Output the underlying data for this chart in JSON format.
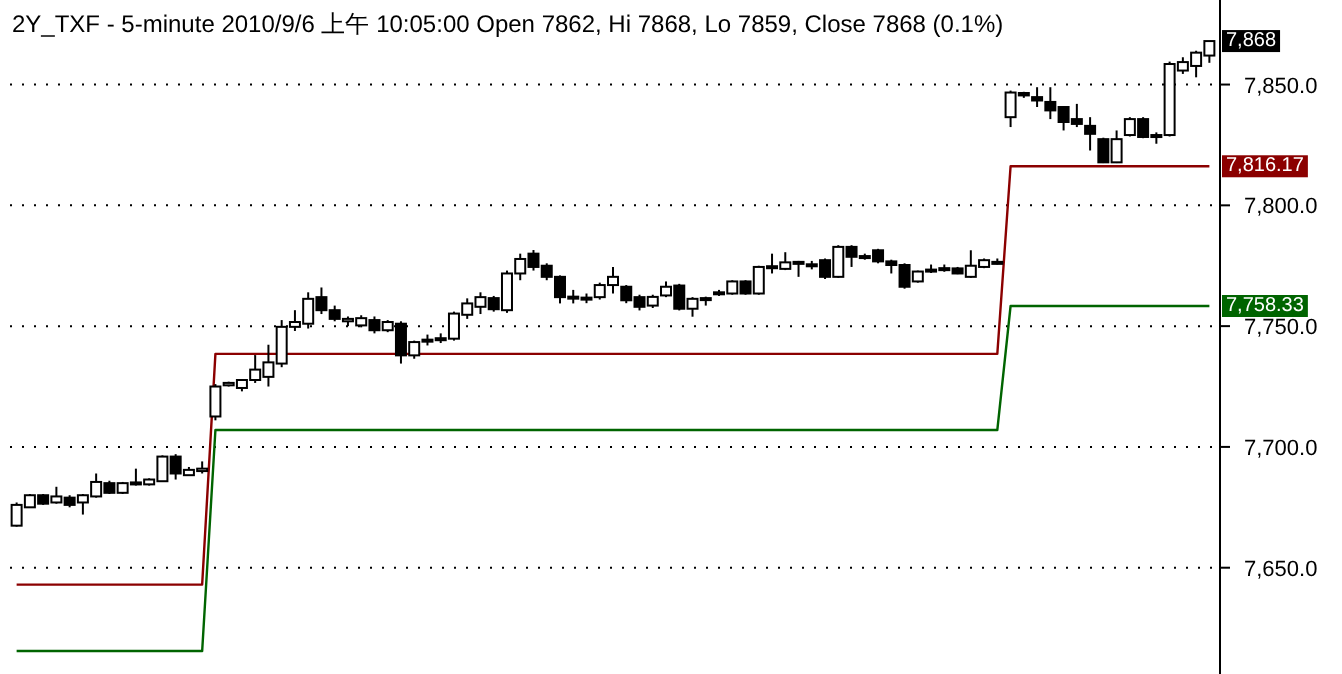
{
  "chart_data": {
    "type": "candlestick",
    "title": "2Y_TXF - 5-minute 2010/9/6 上午 10:05:00 Open 7862, Hi 7868, Lo 7859, Close 7868 (0.1%)",
    "categories": [
      null,
      null,
      null,
      null,
      null,
      null,
      null,
      null,
      null,
      null,
      null,
      null,
      null,
      null,
      null,
      null,
      null,
      null,
      null,
      null,
      null,
      null,
      null,
      null,
      null,
      null,
      null,
      null,
      null,
      null,
      null,
      null,
      null,
      null,
      null,
      null,
      null,
      null,
      null,
      null,
      null,
      null,
      null,
      null,
      null,
      null,
      null,
      null,
      null,
      null,
      null,
      null,
      null,
      null,
      null,
      null,
      null,
      null,
      null,
      null,
      null,
      null,
      null,
      null,
      null,
      null,
      null,
      null,
      null,
      null,
      null,
      null,
      null,
      null,
      null,
      null,
      null,
      null,
      null,
      null,
      null,
      null,
      null,
      null,
      null,
      null,
      null,
      null,
      null,
      null,
      null
    ],
    "ohlc": [
      [
        7667.4,
        7677,
        7667,
        7676
      ],
      [
        7675,
        7680.5,
        7675,
        7680
      ],
      [
        7680,
        7680.5,
        7676,
        7676.5
      ],
      [
        7677,
        7683.5,
        7676.5,
        7679.5
      ],
      [
        7679,
        7680,
        7675,
        7676
      ],
      [
        7677,
        7680.5,
        7672,
        7680
      ],
      [
        7679.5,
        7689,
        7679,
        7685.5
      ],
      [
        7685,
        7686,
        7680.5,
        7681
      ],
      [
        7681,
        7685.5,
        7680.5,
        7685
      ],
      [
        7684.5,
        7691,
        7684,
        7685.3
      ],
      [
        7684.5,
        7687,
        7684,
        7686.5
      ],
      [
        7685.8,
        7696.5,
        7685.5,
        7696
      ],
      [
        7696,
        7697,
        7686.5,
        7689
      ],
      [
        7688.3,
        7691.7,
        7688,
        7690.5
      ],
      [
        7690,
        7694,
        7689,
        7691
      ],
      [
        7712.6,
        7726,
        7711,
        7725
      ],
      [
        7725.5,
        7727,
        7725,
        7726.5
      ],
      [
        7724.4,
        7728,
        7723,
        7727.7
      ],
      [
        7727.7,
        7738,
        7726.5,
        7732
      ],
      [
        7729,
        7742.3,
        7725,
        7735
      ],
      [
        7734.5,
        7752.5,
        7733,
        7749.7
      ],
      [
        7749.7,
        7756.6,
        7748,
        7751.7
      ],
      [
        7751,
        7764,
        7749,
        7761.3
      ],
      [
        7762,
        7766,
        7755,
        7756.6
      ],
      [
        7756.6,
        7758.5,
        7752,
        7753
      ],
      [
        7752,
        7754,
        7750,
        7753
      ],
      [
        7750.3,
        7754.5,
        7749.5,
        7753.3
      ],
      [
        7752.5,
        7754,
        7747,
        7748.3
      ],
      [
        7748.3,
        7752.5,
        7747.5,
        7751.7
      ],
      [
        7751,
        7752,
        7734.5,
        7737.9
      ],
      [
        7737.9,
        7744,
        7736.5,
        7743.4
      ],
      [
        7743.8,
        7746.5,
        7742,
        7744.4
      ],
      [
        7744.5,
        7747,
        7743,
        7745
      ],
      [
        7744.8,
        7756,
        7744,
        7755.2
      ],
      [
        7754.7,
        7761.5,
        7753,
        7759.4
      ],
      [
        7758,
        7764,
        7755,
        7762
      ],
      [
        7761.6,
        7762.5,
        7756,
        7757
      ],
      [
        7756.6,
        7773,
        7755.5,
        7771.8
      ],
      [
        7771.8,
        7780,
        7769,
        7777.8
      ],
      [
        7780,
        7781.5,
        7773,
        7774.5
      ],
      [
        7775,
        7776,
        7769,
        7770.4
      ],
      [
        7770.4,
        7771,
        7759.4,
        7762
      ],
      [
        7761.6,
        7765,
        7759.4,
        7762.2
      ],
      [
        7761.2,
        7763.5,
        7759.5,
        7761.8
      ],
      [
        7762,
        7768,
        7761,
        7767
      ],
      [
        7767,
        7774.5,
        7763.5,
        7770.4
      ],
      [
        7766.3,
        7767,
        7759.5,
        7760.7
      ],
      [
        7762,
        7763,
        7756.5,
        7758
      ],
      [
        7758.5,
        7763,
        7757.5,
        7762.1
      ],
      [
        7762.7,
        7768.5,
        7762,
        7766.3
      ],
      [
        7766.8,
        7767.5,
        7756.5,
        7757.2
      ],
      [
        7757.2,
        7762,
        7753.9,
        7761.3
      ],
      [
        7761,
        7762.2,
        7758.5,
        7761.6
      ],
      [
        7763.5,
        7765,
        7762.5,
        7764
      ],
      [
        7763.5,
        7769,
        7763,
        7768.5
      ],
      [
        7768.5,
        7769,
        7763,
        7763.5
      ],
      [
        7763.5,
        7775,
        7763,
        7774.5
      ],
      [
        7774.2,
        7780,
        7771.8,
        7774.8
      ],
      [
        7773.7,
        7780.6,
        7773.2,
        7776.4
      ],
      [
        7776,
        7777,
        7770.4,
        7776.6
      ],
      [
        7775,
        7777,
        7773.5,
        7775.6
      ],
      [
        7777.3,
        7778,
        7769.5,
        7770.4
      ],
      [
        7770.4,
        7783.5,
        7770,
        7782.8
      ],
      [
        7782.8,
        7783.5,
        7774.5,
        7778.7
      ],
      [
        7778.5,
        7780,
        7777.5,
        7779
      ],
      [
        7781.4,
        7782,
        7776,
        7776.8
      ],
      [
        7776.8,
        7777.5,
        7771.8,
        7775.3
      ],
      [
        7775.3,
        7776,
        7765.5,
        7766.3
      ],
      [
        7768.5,
        7773,
        7768,
        7772.6
      ],
      [
        7772.8,
        7775.5,
        7772,
        7773.4
      ],
      [
        7773.4,
        7775.5,
        7772.5,
        7774
      ],
      [
        7773.9,
        7774.5,
        7771.5,
        7771.8
      ],
      [
        7770.4,
        7781.4,
        7770,
        7775
      ],
      [
        7774.5,
        7778,
        7774,
        7777.3
      ],
      [
        7776.2,
        7778,
        7775.5,
        7776.6
      ],
      [
        7836.5,
        7847.5,
        7832.4,
        7846.7
      ],
      [
        7846.5,
        7847,
        7844.5,
        7845.5
      ],
      [
        7844.8,
        7848.9,
        7840.7,
        7843.4
      ],
      [
        7842.8,
        7848.9,
        7835.7,
        7839.3
      ],
      [
        7840.7,
        7841,
        7831,
        7834.5
      ],
      [
        7835.7,
        7842,
        7832.4,
        7833.7
      ],
      [
        7832.9,
        7836.5,
        7822.7,
        7829.6
      ],
      [
        7827.4,
        7828,
        7817.5,
        7817.8
      ],
      [
        7817.8,
        7831,
        7817.5,
        7827.4
      ],
      [
        7829.1,
        7836.5,
        7828.5,
        7835.7
      ],
      [
        7835.7,
        7836.5,
        7827.8,
        7828.3
      ],
      [
        7828.5,
        7830.2,
        7825.5,
        7829.1
      ],
      [
        7829.1,
        7859.5,
        7828.5,
        7858.5
      ],
      [
        7855.8,
        7861.3,
        7854.4,
        7859.3
      ],
      [
        7857.7,
        7864,
        7853,
        7863.2
      ],
      [
        7862,
        7868,
        7859,
        7868
      ]
    ],
    "series": [
      {
        "type": "line",
        "color": "#8b0000",
        "values": [
          7643,
          7643,
          7643,
          7643,
          7643,
          7643,
          7643,
          7643,
          7643,
          7643,
          7643,
          7643,
          7643,
          7643,
          7643,
          7738.5,
          7738.5,
          7738.5,
          7738.5,
          7738.5,
          7738.5,
          7738.5,
          7738.5,
          7738.5,
          7738.5,
          7738.5,
          7738.5,
          7738.5,
          7738.5,
          7738.5,
          7738.5,
          7738.5,
          7738.5,
          7738.5,
          7738.5,
          7738.5,
          7738.5,
          7738.5,
          7738.5,
          7738.5,
          7738.5,
          7738.5,
          7738.5,
          7738.5,
          7738.5,
          7738.5,
          7738.5,
          7738.5,
          7738.5,
          7738.5,
          7738.5,
          7738.5,
          7738.5,
          7738.5,
          7738.5,
          7738.5,
          7738.5,
          7738.5,
          7738.5,
          7738.5,
          7738.5,
          7738.5,
          7738.5,
          7738.5,
          7738.5,
          7738.5,
          7738.5,
          7738.5,
          7738.5,
          7738.5,
          7738.5,
          7738.5,
          7738.5,
          7738.5,
          7738.5,
          7816.17,
          7816.17,
          7816.17,
          7816.17,
          7816.17,
          7816.17,
          7816.17,
          7816.17,
          7816.17,
          7816.17,
          7816.17,
          7816.17,
          7816.17,
          7816.17,
          7816.17,
          7816.17
        ],
        "value_labels": [
          null,
          null,
          null,
          null,
          null,
          null,
          null,
          null,
          null,
          null,
          null,
          null,
          null,
          null,
          null,
          null,
          null,
          null,
          null,
          null,
          null,
          null,
          null,
          null,
          null,
          null,
          null,
          null,
          null,
          null,
          null,
          null,
          null,
          null,
          null,
          null,
          null,
          null,
          null,
          null,
          null,
          null,
          null,
          null,
          null,
          null,
          null,
          null,
          null,
          null,
          null,
          null,
          null,
          null,
          null,
          null,
          null,
          null,
          null,
          null,
          null,
          null,
          null,
          null,
          null,
          null,
          null,
          null,
          null,
          null,
          null,
          null,
          null,
          null,
          null,
          null,
          null,
          null,
          null,
          null,
          null,
          null,
          null,
          null,
          null,
          null,
          null,
          null,
          null,
          null,
          "7,816.17"
        ]
      },
      {
        "type": "line",
        "color": "#006400",
        "values": [
          7615.5,
          7615.5,
          7615.5,
          7615.5,
          7615.5,
          7615.5,
          7615.5,
          7615.5,
          7615.5,
          7615.5,
          7615.5,
          7615.5,
          7615.5,
          7615.5,
          7615.5,
          7707,
          7707,
          7707,
          7707,
          7707,
          7707,
          7707,
          7707,
          7707,
          7707,
          7707,
          7707,
          7707,
          7707,
          7707,
          7707,
          7707,
          7707,
          7707,
          7707,
          7707,
          7707,
          7707,
          7707,
          7707,
          7707,
          7707,
          7707,
          7707,
          7707,
          7707,
          7707,
          7707,
          7707,
          7707,
          7707,
          7707,
          7707,
          7707,
          7707,
          7707,
          7707,
          7707,
          7707,
          7707,
          7707,
          7707,
          7707,
          7707,
          7707,
          7707,
          7707,
          7707,
          7707,
          7707,
          7707,
          7707,
          7707,
          7707,
          7707,
          7758.33,
          7758.33,
          7758.33,
          7758.33,
          7758.33,
          7758.33,
          7758.33,
          7758.33,
          7758.33,
          7758.33,
          7758.33,
          7758.33,
          7758.33,
          7758.33,
          7758.33,
          7758.33
        ],
        "value_labels": [
          null,
          null,
          null,
          null,
          null,
          null,
          null,
          null,
          null,
          null,
          null,
          null,
          null,
          null,
          null,
          null,
          null,
          null,
          null,
          null,
          null,
          null,
          null,
          null,
          null,
          null,
          null,
          null,
          null,
          null,
          null,
          null,
          null,
          null,
          null,
          null,
          null,
          null,
          null,
          null,
          null,
          null,
          null,
          null,
          null,
          null,
          null,
          null,
          null,
          null,
          null,
          null,
          null,
          null,
          null,
          null,
          null,
          null,
          null,
          null,
          null,
          null,
          null,
          null,
          null,
          null,
          null,
          null,
          null,
          null,
          null,
          null,
          null,
          null,
          null,
          null,
          null,
          null,
          null,
          null,
          null,
          null,
          null,
          null,
          null,
          null,
          null,
          null,
          null,
          null,
          "7,758.33"
        ]
      }
    ],
    "annotations": [
      {
        "text": "7,868",
        "y": 7868
      }
    ],
    "ylim": [
      7606,
      7885
    ],
    "yticks": [
      {
        "value": 7650,
        "label": "7,650.0"
      },
      {
        "value": 7700,
        "label": "7,700.0"
      },
      {
        "value": 7750,
        "label": "7,750.0"
      },
      {
        "value": 7800,
        "label": "7,800.0"
      },
      {
        "value": 7850,
        "label": "7,850.0"
      }
    ],
    "grid": "y",
    "tick_labels": "y"
  }
}
